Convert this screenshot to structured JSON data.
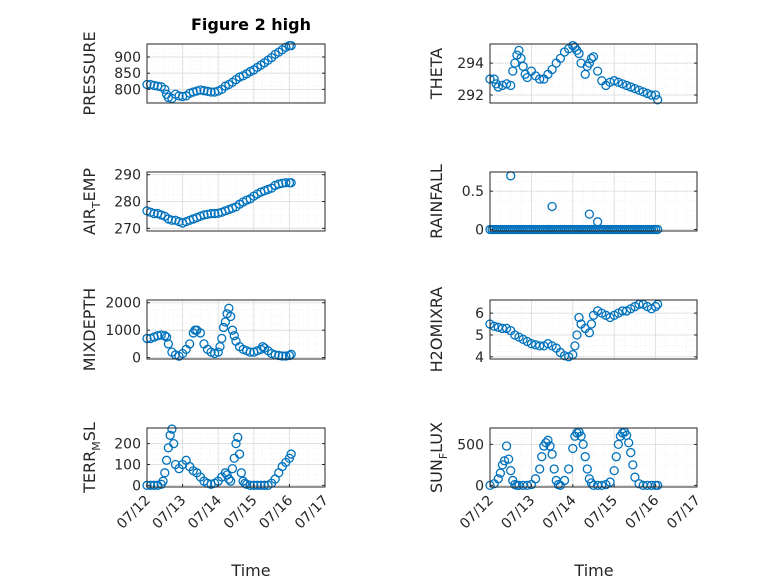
{
  "figure_title": "Figure 2 high",
  "xlabel": "Time",
  "colors": {
    "marker": "#0072BD",
    "axes": "#262626",
    "grid": "#d9d9d9"
  },
  "chart_data": [
    {
      "type": "scatter",
      "panel": "left-1",
      "title": "Figure 2 high",
      "ylabel": "PRESSURE",
      "ylabel_main": "PRESSURE",
      "ylabel_sub": "",
      "ylabel_tail": "",
      "xlim": [
        12,
        17
      ],
      "ylim": [
        758,
        940
      ],
      "yticks": [
        800,
        850,
        900
      ],
      "ytick_labels": [
        "800",
        "850",
        "900"
      ],
      "xticks": [],
      "xtick_labels": [],
      "x": [
        12.0,
        12.1,
        12.2,
        12.3,
        12.4,
        12.5,
        12.55,
        12.6,
        12.7,
        12.8,
        12.9,
        13.0,
        13.1,
        13.2,
        13.3,
        13.4,
        13.5,
        13.6,
        13.7,
        13.8,
        13.9,
        14.0,
        14.1,
        14.2,
        14.3,
        14.4,
        14.5,
        14.6,
        14.7,
        14.8,
        14.9,
        15.0,
        15.1,
        15.2,
        15.3,
        15.4,
        15.5,
        15.6,
        15.7,
        15.8,
        15.9,
        16.0,
        16.05
      ],
      "y": [
        815,
        815,
        812,
        810,
        808,
        800,
        785,
        775,
        772,
        785,
        780,
        778,
        780,
        788,
        792,
        795,
        798,
        796,
        794,
        792,
        792,
        795,
        800,
        810,
        815,
        822,
        830,
        838,
        842,
        848,
        855,
        860,
        868,
        875,
        882,
        890,
        898,
        908,
        915,
        922,
        930,
        935,
        935
      ]
    },
    {
      "type": "scatter",
      "panel": "right-1",
      "ylabel": "THETA",
      "ylabel_main": "THETA",
      "ylabel_sub": "",
      "ylabel_tail": "",
      "xlim": [
        12,
        17
      ],
      "ylim": [
        291.5,
        295.2
      ],
      "yticks": [
        292,
        294
      ],
      "ytick_labels": [
        "292",
        "294"
      ],
      "xticks": [],
      "xtick_labels": [],
      "x": [
        12.0,
        12.1,
        12.15,
        12.2,
        12.3,
        12.4,
        12.5,
        12.55,
        12.6,
        12.65,
        12.7,
        12.75,
        12.8,
        12.85,
        12.9,
        13.0,
        13.1,
        13.2,
        13.3,
        13.4,
        13.5,
        13.6,
        13.7,
        13.8,
        13.9,
        14.0,
        14.05,
        14.1,
        14.15,
        14.2,
        14.3,
        14.35,
        14.4,
        14.45,
        14.5,
        14.6,
        14.7,
        14.8,
        14.9,
        15.0,
        15.1,
        15.2,
        15.3,
        15.4,
        15.5,
        15.6,
        15.7,
        15.8,
        15.9,
        16.0,
        16.05
      ],
      "y": [
        293,
        293,
        292.7,
        292.5,
        292.6,
        292.7,
        292.6,
        293.5,
        294,
        294.5,
        294.8,
        294.3,
        293.8,
        293.3,
        293.1,
        293.5,
        293.2,
        293,
        293,
        293.3,
        293.6,
        294,
        294.3,
        294.7,
        294.9,
        295.1,
        295,
        294.8,
        294.6,
        294,
        293.3,
        293.8,
        294,
        294.3,
        294.4,
        293.5,
        292.9,
        292.6,
        292.8,
        292.9,
        292.8,
        292.7,
        292.6,
        292.5,
        292.4,
        292.3,
        292.2,
        292.1,
        292,
        292,
        291.7
      ]
    },
    {
      "type": "scatter",
      "panel": "left-2",
      "ylabel": "AIR_TEMP",
      "ylabel_main": "AIR",
      "ylabel_sub": "T",
      "ylabel_tail": "EMP",
      "xlim": [
        12,
        17
      ],
      "ylim": [
        269,
        291
      ],
      "yticks": [
        270,
        280,
        290
      ],
      "ytick_labels": [
        "270",
        "280",
        "290"
      ],
      "xticks": [],
      "xtick_labels": [],
      "x": [
        12.0,
        12.1,
        12.2,
        12.3,
        12.4,
        12.5,
        12.6,
        12.7,
        12.8,
        12.9,
        13.0,
        13.1,
        13.2,
        13.3,
        13.4,
        13.5,
        13.6,
        13.7,
        13.8,
        13.9,
        14.0,
        14.1,
        14.2,
        14.3,
        14.4,
        14.5,
        14.6,
        14.7,
        14.8,
        14.9,
        15.0,
        15.1,
        15.2,
        15.3,
        15.4,
        15.5,
        15.6,
        15.7,
        15.8,
        15.9,
        16.0,
        16.05
      ],
      "y": [
        276.5,
        276,
        275.5,
        275.5,
        275,
        274.5,
        273.5,
        273,
        273,
        272.5,
        272,
        272.5,
        273,
        273.5,
        274,
        274.5,
        275,
        275.2,
        275.5,
        275.5,
        275.6,
        276,
        276.5,
        277,
        277.5,
        278,
        279,
        279.8,
        280.5,
        281,
        282,
        282.8,
        283.5,
        284,
        284.5,
        285,
        286,
        286.5,
        286.8,
        287,
        287,
        287
      ]
    },
    {
      "type": "scatter",
      "panel": "right-2",
      "ylabel": "RAINFALL",
      "ylabel_main": "RAINFALL",
      "ylabel_sub": "",
      "ylabel_tail": "",
      "xlim": [
        12,
        17
      ],
      "ylim": [
        -0.02,
        0.75
      ],
      "yticks": [
        0,
        0.5
      ],
      "ytick_labels": [
        "0",
        "0.5"
      ],
      "xticks": [],
      "xtick_labels": [],
      "x": [
        12.0,
        12.05,
        12.1,
        12.15,
        12.2,
        12.25,
        12.3,
        12.35,
        12.4,
        12.45,
        12.5,
        12.55,
        12.6,
        12.65,
        12.7,
        12.75,
        12.8,
        12.85,
        12.9,
        12.95,
        13.0,
        13.05,
        13.1,
        13.15,
        13.2,
        13.25,
        13.3,
        13.35,
        13.4,
        13.45,
        13.5,
        13.55,
        13.6,
        13.65,
        13.7,
        13.75,
        13.8,
        13.85,
        13.9,
        13.95,
        14.0,
        14.05,
        14.1,
        14.15,
        14.2,
        14.25,
        14.3,
        14.35,
        14.4,
        14.45,
        14.5,
        14.55,
        14.6,
        14.65,
        14.7,
        14.75,
        14.8,
        14.85,
        14.9,
        14.95,
        15.0,
        15.05,
        15.1,
        15.15,
        15.2,
        15.25,
        15.3,
        15.35,
        15.4,
        15.45,
        15.5,
        15.55,
        15.6,
        15.65,
        15.7,
        15.75,
        15.8,
        15.85,
        15.9,
        15.95,
        16.0,
        16.05,
        12.5,
        13.5,
        14.4,
        14.6
      ],
      "y": [
        0,
        0,
        0,
        0,
        0,
        0,
        0,
        0,
        0,
        0,
        0,
        0,
        0,
        0,
        0,
        0,
        0,
        0,
        0,
        0,
        0,
        0,
        0,
        0,
        0,
        0,
        0,
        0,
        0,
        0,
        0,
        0,
        0,
        0,
        0,
        0,
        0,
        0,
        0,
        0,
        0,
        0,
        0,
        0,
        0,
        0,
        0,
        0,
        0,
        0,
        0,
        0,
        0,
        0,
        0,
        0,
        0,
        0,
        0,
        0,
        0,
        0,
        0,
        0,
        0,
        0,
        0,
        0,
        0,
        0,
        0,
        0,
        0,
        0,
        0,
        0,
        0,
        0,
        0,
        0,
        0,
        0,
        0.7,
        0.3,
        0.2,
        0.1
      ]
    },
    {
      "type": "scatter",
      "panel": "left-3",
      "ylabel": "MIXDEPTH",
      "ylabel_main": "MIXDEPTH",
      "ylabel_sub": "",
      "ylabel_tail": "",
      "xlim": [
        12,
        17
      ],
      "ylim": [
        -50,
        2100
      ],
      "yticks": [
        0,
        1000,
        2000
      ],
      "ytick_labels": [
        "0",
        "1000",
        "2000"
      ],
      "xticks": [],
      "xtick_labels": [],
      "x": [
        12.0,
        12.1,
        12.2,
        12.3,
        12.4,
        12.5,
        12.55,
        12.6,
        12.7,
        12.8,
        12.9,
        13.0,
        13.1,
        13.2,
        13.3,
        13.35,
        13.4,
        13.5,
        13.6,
        13.7,
        13.8,
        13.9,
        14.0,
        14.05,
        14.1,
        14.15,
        14.2,
        14.25,
        14.3,
        14.35,
        14.4,
        14.45,
        14.5,
        14.6,
        14.7,
        14.8,
        14.9,
        15.0,
        15.1,
        15.2,
        15.25,
        15.3,
        15.4,
        15.5,
        15.6,
        15.7,
        15.8,
        15.9,
        16.0,
        16.05
      ],
      "y": [
        700,
        700,
        750,
        800,
        820,
        800,
        750,
        500,
        200,
        100,
        50,
        150,
        300,
        500,
        900,
        1000,
        1000,
        900,
        500,
        300,
        200,
        150,
        200,
        400,
        700,
        1100,
        1300,
        1600,
        1800,
        1500,
        1000,
        800,
        600,
        400,
        300,
        250,
        200,
        200,
        250,
        300,
        400,
        350,
        250,
        150,
        100,
        80,
        60,
        60,
        80,
        120
      ]
    },
    {
      "type": "scatter",
      "panel": "right-3",
      "ylabel": "H2OMIXRA",
      "ylabel_main": "H2OMIXRA",
      "ylabel_sub": "",
      "ylabel_tail": "",
      "xlim": [
        12,
        17
      ],
      "ylim": [
        3.9,
        6.6
      ],
      "yticks": [
        4,
        5,
        6
      ],
      "ytick_labels": [
        "4",
        "5",
        "6"
      ],
      "xticks": [],
      "xtick_labels": [],
      "x": [
        12.0,
        12.1,
        12.2,
        12.3,
        12.4,
        12.5,
        12.6,
        12.7,
        12.8,
        12.9,
        13.0,
        13.1,
        13.2,
        13.3,
        13.4,
        13.5,
        13.6,
        13.7,
        13.8,
        13.9,
        14.0,
        14.05,
        14.1,
        14.15,
        14.2,
        14.3,
        14.4,
        14.45,
        14.5,
        14.6,
        14.7,
        14.8,
        14.9,
        15.0,
        15.1,
        15.2,
        15.3,
        15.4,
        15.5,
        15.6,
        15.7,
        15.8,
        15.9,
        16.0,
        16.05
      ],
      "y": [
        5.5,
        5.4,
        5.35,
        5.3,
        5.3,
        5.2,
        5,
        4.9,
        4.8,
        4.7,
        4.6,
        4.55,
        4.5,
        4.5,
        4.6,
        4.5,
        4.4,
        4.2,
        4.05,
        4,
        4.1,
        4.5,
        5,
        5.8,
        5.5,
        5.3,
        5.1,
        5.5,
        5.9,
        6.1,
        6,
        5.9,
        5.8,
        5.9,
        6,
        6.1,
        6.1,
        6.2,
        6.3,
        6.4,
        6.4,
        6.3,
        6.2,
        6.3,
        6.4
      ]
    },
    {
      "type": "scatter",
      "panel": "left-4",
      "ylabel": "TERR_MSL",
      "ylabel_main": "TERR",
      "ylabel_sub": "M",
      "ylabel_tail": "SL",
      "xlim": [
        12,
        17
      ],
      "ylim": [
        -8,
        275
      ],
      "yticks": [
        0,
        100,
        200
      ],
      "ytick_labels": [
        "0",
        "100",
        "200"
      ],
      "xticks": [
        12,
        13,
        14,
        15,
        16,
        17
      ],
      "xtick_labels": [
        "07/12",
        "07/13",
        "07/14",
        "07/15",
        "07/16",
        "07/17"
      ],
      "x": [
        12.0,
        12.1,
        12.2,
        12.3,
        12.4,
        12.45,
        12.5,
        12.55,
        12.6,
        12.65,
        12.7,
        12.75,
        12.8,
        12.9,
        13.0,
        13.1,
        13.2,
        13.3,
        13.4,
        13.5,
        13.6,
        13.7,
        13.8,
        13.9,
        14.0,
        14.1,
        14.2,
        14.25,
        14.3,
        14.35,
        14.4,
        14.45,
        14.5,
        14.55,
        14.6,
        14.65,
        14.7,
        14.75,
        14.8,
        14.9,
        15.0,
        15.1,
        15.2,
        15.3,
        15.4,
        15.5,
        15.6,
        15.7,
        15.8,
        15.9,
        16.0,
        16.05
      ],
      "y": [
        0,
        0,
        0,
        0,
        5,
        20,
        60,
        120,
        180,
        240,
        270,
        200,
        100,
        80,
        100,
        120,
        90,
        70,
        60,
        40,
        20,
        10,
        5,
        10,
        20,
        40,
        60,
        50,
        30,
        20,
        80,
        130,
        200,
        230,
        150,
        60,
        20,
        10,
        5,
        0,
        0,
        0,
        0,
        0,
        0,
        10,
        30,
        60,
        90,
        110,
        130,
        150
      ]
    },
    {
      "type": "scatter",
      "panel": "right-4",
      "ylabel": "SUN_FLUX",
      "ylabel_main": "SUN",
      "ylabel_sub": "F",
      "ylabel_tail": "LUX",
      "xlim": [
        12,
        17
      ],
      "ylim": [
        -20,
        700
      ],
      "yticks": [
        0,
        500
      ],
      "ytick_labels": [
        "0",
        "500"
      ],
      "xticks": [
        12,
        13,
        14,
        15,
        16,
        17
      ],
      "xtick_labels": [
        "07/12",
        "07/13",
        "07/14",
        "07/15",
        "07/16",
        "07/17"
      ],
      "x": [
        12.0,
        12.1,
        12.2,
        12.25,
        12.3,
        12.35,
        12.4,
        12.45,
        12.5,
        12.55,
        12.6,
        12.65,
        12.7,
        12.8,
        12.9,
        13.0,
        13.1,
        13.2,
        13.25,
        13.3,
        13.35,
        13.4,
        13.45,
        13.5,
        13.55,
        13.6,
        13.65,
        13.7,
        13.8,
        13.9,
        14.0,
        14.05,
        14.1,
        14.15,
        14.2,
        14.25,
        14.3,
        14.35,
        14.4,
        14.45,
        14.5,
        14.6,
        14.7,
        14.8,
        14.9,
        15.0,
        15.05,
        15.1,
        15.15,
        15.2,
        15.25,
        15.3,
        15.35,
        15.4,
        15.45,
        15.5,
        15.6,
        15.7,
        15.8,
        15.9,
        16.0,
        16.05
      ],
      "y": [
        0,
        20,
        80,
        150,
        250,
        300,
        480,
        320,
        180,
        60,
        10,
        0,
        0,
        0,
        0,
        10,
        80,
        200,
        350,
        480,
        520,
        550,
        480,
        380,
        200,
        60,
        10,
        0,
        60,
        200,
        450,
        600,
        640,
        650,
        600,
        500,
        350,
        200,
        80,
        30,
        0,
        0,
        0,
        10,
        40,
        180,
        350,
        500,
        600,
        640,
        650,
        610,
        520,
        400,
        250,
        100,
        20,
        0,
        0,
        0,
        0,
        0
      ]
    }
  ]
}
